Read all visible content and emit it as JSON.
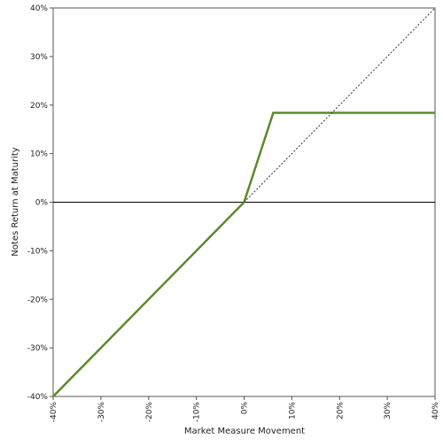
{
  "chart_data": {
    "type": "line",
    "title": "",
    "xlabel": "Market Measure Movement",
    "ylabel": "Notes Return at Maturity",
    "xlim": [
      -40,
      40
    ],
    "ylim": [
      -40,
      40
    ],
    "x_ticks": [
      -40,
      -30,
      -20,
      -10,
      0,
      10,
      20,
      30,
      40
    ],
    "y_ticks": [
      -40,
      -30,
      -20,
      -10,
      0,
      10,
      20,
      30,
      40
    ],
    "x_tick_labels": [
      "-40%",
      "-30%",
      "-20%",
      "-10%",
      "0%",
      "10%",
      "20%",
      "30%",
      "40%"
    ],
    "y_tick_labels": [
      "-40%",
      "-30%",
      "-20%",
      "-10%",
      "0%",
      "10%",
      "20%",
      "30%",
      "40%"
    ],
    "grid": false,
    "series": [
      {
        "style": "solid",
        "color": "#5a8a2a",
        "points": [
          [
            -40,
            -40
          ],
          [
            0,
            0
          ],
          [
            6.1,
            18.4
          ],
          [
            40,
            18.4
          ]
        ]
      },
      {
        "style": "dotted",
        "color": "#333333",
        "points": [
          [
            0,
            0
          ],
          [
            40,
            40
          ]
        ]
      }
    ],
    "reference_lines": [
      {
        "axis": "y",
        "value": 0,
        "color": "#000000"
      }
    ]
  }
}
